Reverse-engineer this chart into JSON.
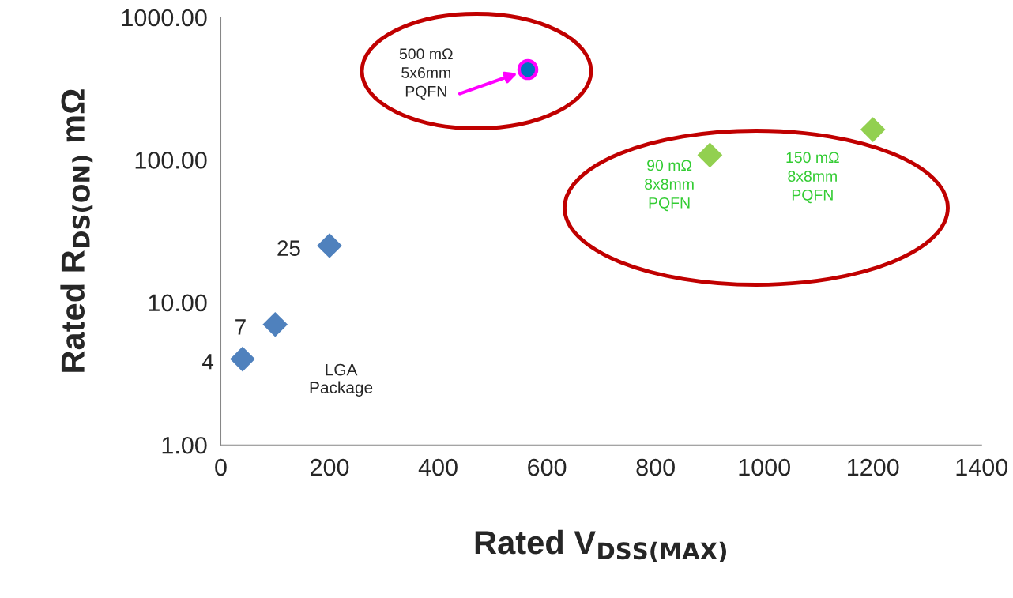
{
  "chart_data": {
    "type": "scatter",
    "xlabel": "Rated V$_{DSS(MAX)}$",
    "ylabel": "Rated R$_{DS(ON)}$ mΩ",
    "log": "y",
    "xlim": [
      0,
      1400
    ],
    "xticks": [
      0,
      200,
      400,
      600,
      800,
      1000,
      1200,
      1400
    ],
    "ylim": [
      1,
      1000
    ],
    "yticks": [
      {
        "value": 1,
        "label": "1.00"
      },
      {
        "value": 10,
        "label": "10.00"
      },
      {
        "value": 100,
        "label": "100.00"
      },
      {
        "value": 1000,
        "label": "1000.00"
      }
    ],
    "grid": false,
    "legend": false,
    "marker": "diamond",
    "series": [
      {
        "color": "#4f81bd",
        "x": [
          40,
          100,
          200
        ],
        "values": [
          4,
          7,
          25
        ],
        "value_labels": [
          "4",
          "7",
          "25"
        ]
      },
      {
        "color": "#0070c0",
        "x": [
          565
        ],
        "values": [
          430
        ],
        "marker": "circle"
      },
      {
        "color": "#92d050",
        "x": [
          900,
          1200
        ],
        "values": [
          108,
          163
        ]
      }
    ],
    "annotations": [
      "LGA\nPackage",
      "500 mΩ\n5x6mm\nPQFN",
      {
        "text": "90 mΩ\n8x8mm\nPQFN",
        "x": 900,
        "y": 108
      },
      {
        "text": "150 mΩ\n8x8mm\nPQFN",
        "x": 1200,
        "y": 163
      }
    ]
  }
}
